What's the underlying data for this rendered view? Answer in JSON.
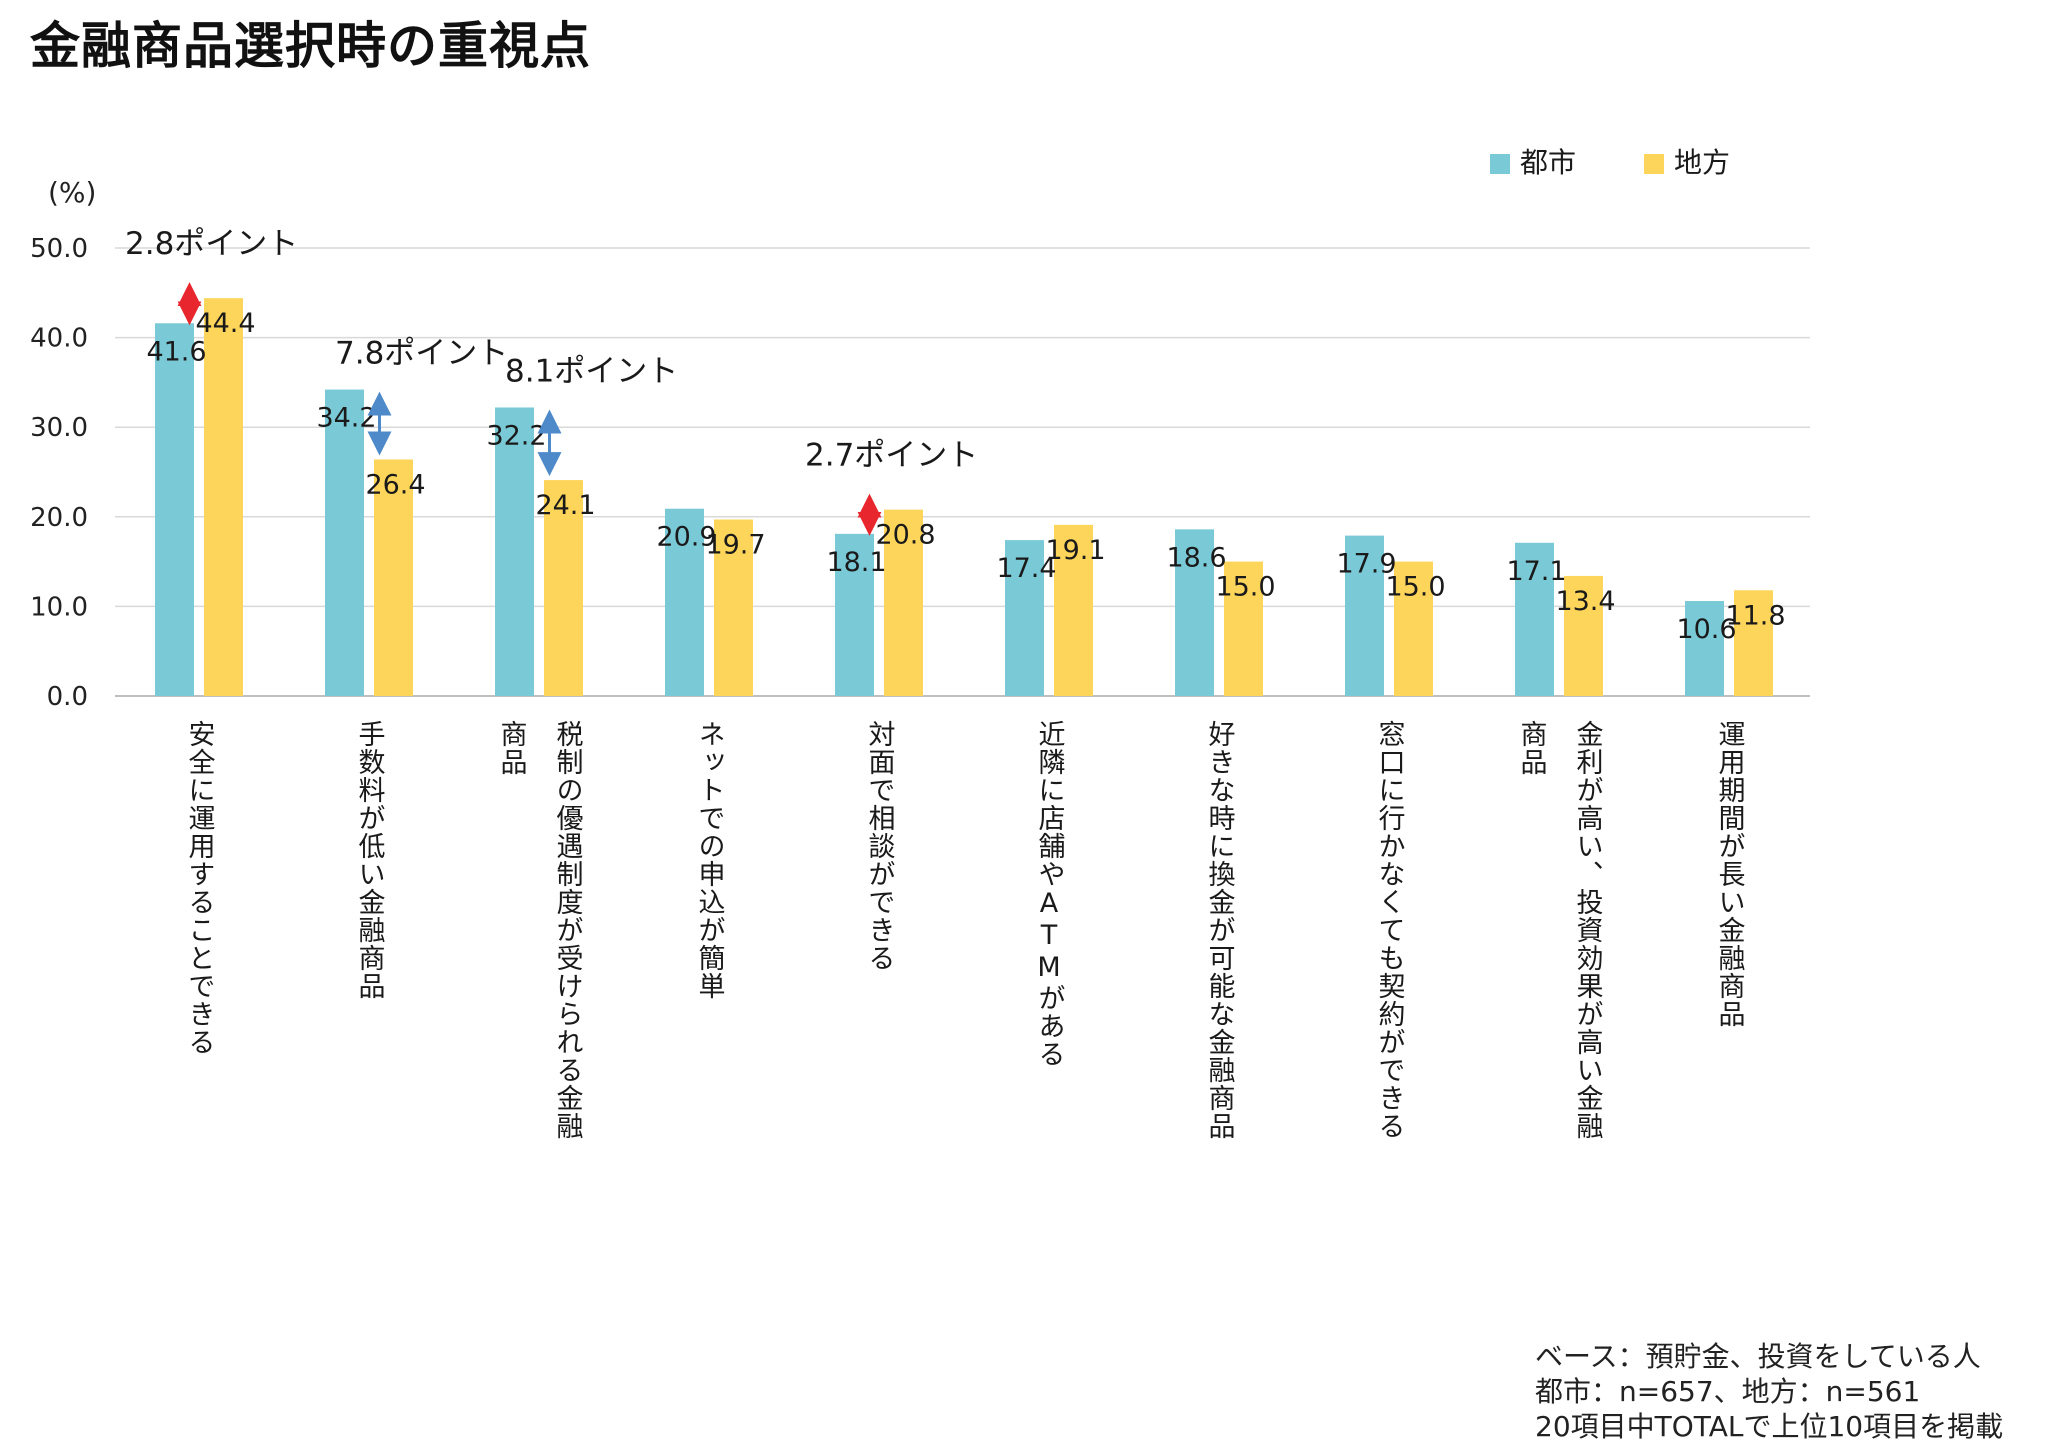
{
  "title": "金融商品選択時の重視点",
  "notes": [
    "ベース：預貯金、投資をしている人",
    "都市：n=657、地方：n=561",
    "20項目中TOTALで上位10項目を掲載"
  ],
  "colors": {
    "urban": "#7ac9d6",
    "rural": "#fdd55a",
    "arrow_red": "#e8262d",
    "arrow_blue": "#4e8ac9",
    "grid": "#d9d9d9"
  },
  "chart_data": {
    "type": "bar",
    "title": "金融商品選択時の重視点",
    "ylabel": "(%)",
    "ylim": [
      0,
      50
    ],
    "yticks": [
      "0.0",
      "10.0",
      "20.0",
      "30.0",
      "40.0",
      "50.0"
    ],
    "grid": true,
    "legend_position": "top-right",
    "categories": [
      "安全に運用することできる",
      "手数料が低い金融商品",
      "税制の優遇制度が受けられる金融商品",
      "ネットでの申込が簡単",
      "対面で相談ができる",
      "近隣に店舗やATMがある",
      "好きな時に換金が可能な金融商品",
      "窓口に行かなくても契約ができる",
      "金利が高い、投資効果が高い金融商品",
      "運用期間が長い金融商品"
    ],
    "category_lines": [
      [
        "安全に運用することできる"
      ],
      [
        "手数料が低い金融商品"
      ],
      [
        "税制の優遇制度が受けられる金融",
        "商品"
      ],
      [
        "ネットでの申込が簡単"
      ],
      [
        "対面で相談ができる"
      ],
      [
        "近隣に店舗やATMがある"
      ],
      [
        "好きな時に換金が可能な金融商品"
      ],
      [
        "窓口に行かなくても契約ができる"
      ],
      [
        "金利が高い、投資効果が高い金融",
        "商品"
      ],
      [
        "運用期間が長い金融商品"
      ]
    ],
    "series": [
      {
        "name": "都市",
        "values": [
          41.6,
          34.2,
          32.2,
          20.9,
          18.1,
          17.4,
          18.6,
          17.9,
          17.1,
          10.6
        ]
      },
      {
        "name": "地方",
        "values": [
          44.4,
          26.4,
          24.1,
          19.7,
          20.8,
          19.1,
          15.0,
          15.0,
          13.4,
          11.8
        ]
      }
    ],
    "annotations": [
      {
        "category_index": 0,
        "text": "2.8ポイント",
        "arrow": "red"
      },
      {
        "category_index": 1,
        "text": "7.8ポイント",
        "arrow": "blue"
      },
      {
        "category_index": 2,
        "text": "8.1ポイント",
        "arrow": "blue"
      },
      {
        "category_index": 4,
        "text": "2.7ポイント",
        "arrow": "red"
      }
    ]
  }
}
